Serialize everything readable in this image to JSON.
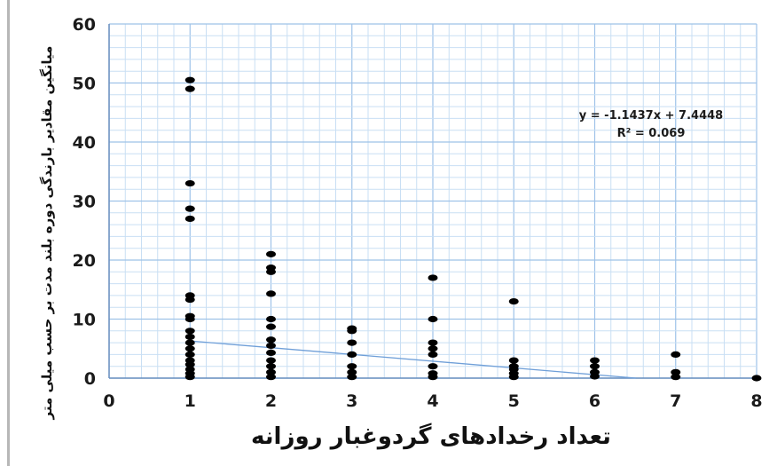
{
  "chart_data": {
    "type": "scatter",
    "xlabel": "تعداد رخدادهای گردوغبار روزانه",
    "ylabel": "میانگین مقادیر بارندگی دوره بلند مدت بر حسب میلی متر",
    "xlim": [
      0,
      8
    ],
    "ylim": [
      0,
      60
    ],
    "x_ticks": [
      "0",
      "1",
      "2",
      "3",
      "4",
      "5",
      "6",
      "7",
      "8"
    ],
    "y_ticks": [
      "0",
      "10",
      "20",
      "30",
      "40",
      "50",
      "60"
    ],
    "grid": true,
    "legend": "none",
    "series": [
      {
        "points": [
          {
            "x": 1,
            "y": 0.2
          },
          {
            "x": 1,
            "y": 0.8
          },
          {
            "x": 1,
            "y": 1.5
          },
          {
            "x": 1,
            "y": 2.3
          },
          {
            "x": 1,
            "y": 3.0
          },
          {
            "x": 1,
            "y": 4.0
          },
          {
            "x": 1,
            "y": 5.0
          },
          {
            "x": 1,
            "y": 6.0
          },
          {
            "x": 1,
            "y": 7.0
          },
          {
            "x": 1,
            "y": 8.0
          },
          {
            "x": 1,
            "y": 10.0
          },
          {
            "x": 1,
            "y": 10.5
          },
          {
            "x": 1,
            "y": 13.3
          },
          {
            "x": 1,
            "y": 14.0
          },
          {
            "x": 1,
            "y": 27.0
          },
          {
            "x": 1,
            "y": 28.7
          },
          {
            "x": 1,
            "y": 33.0
          },
          {
            "x": 1,
            "y": 49.0
          },
          {
            "x": 1,
            "y": 50.5
          },
          {
            "x": 2,
            "y": 0.2
          },
          {
            "x": 2,
            "y": 1.0
          },
          {
            "x": 2,
            "y": 2.0
          },
          {
            "x": 2,
            "y": 3.0
          },
          {
            "x": 2,
            "y": 4.3
          },
          {
            "x": 2,
            "y": 5.5
          },
          {
            "x": 2,
            "y": 6.5
          },
          {
            "x": 2,
            "y": 8.7
          },
          {
            "x": 2,
            "y": 10.0
          },
          {
            "x": 2,
            "y": 14.3
          },
          {
            "x": 2,
            "y": 18.0
          },
          {
            "x": 2,
            "y": 18.7
          },
          {
            "x": 2,
            "y": 21.0
          },
          {
            "x": 3,
            "y": 0.2
          },
          {
            "x": 3,
            "y": 1.0
          },
          {
            "x": 3,
            "y": 2.0
          },
          {
            "x": 3,
            "y": 4.0
          },
          {
            "x": 3,
            "y": 6.0
          },
          {
            "x": 3,
            "y": 8.0
          },
          {
            "x": 3,
            "y": 8.4
          },
          {
            "x": 4,
            "y": 0.2
          },
          {
            "x": 4,
            "y": 0.8
          },
          {
            "x": 4,
            "y": 2.0
          },
          {
            "x": 4,
            "y": 4.0
          },
          {
            "x": 4,
            "y": 5.0
          },
          {
            "x": 4,
            "y": 6.0
          },
          {
            "x": 4,
            "y": 10.0
          },
          {
            "x": 4,
            "y": 17.0
          },
          {
            "x": 5,
            "y": 0.2
          },
          {
            "x": 5,
            "y": 0.8
          },
          {
            "x": 5,
            "y": 1.5
          },
          {
            "x": 5,
            "y": 2.0
          },
          {
            "x": 5,
            "y": 3.0
          },
          {
            "x": 5,
            "y": 13.0
          },
          {
            "x": 6,
            "y": 0.3
          },
          {
            "x": 6,
            "y": 1.0
          },
          {
            "x": 6,
            "y": 2.0
          },
          {
            "x": 6,
            "y": 3.0
          },
          {
            "x": 7,
            "y": 0.2
          },
          {
            "x": 7,
            "y": 1.0
          },
          {
            "x": 7,
            "y": 4.0
          },
          {
            "x": 8,
            "y": 0.0
          }
        ],
        "color": "#000000"
      }
    ],
    "trendline": {
      "slope": -1.1437,
      "intercept": 7.4448,
      "x_range": [
        1,
        6.51
      ],
      "color": "#6f9fd8",
      "equation": "y = -1.1437x + 7.4448",
      "r_squared": "R² = 0.069"
    },
    "colors": {
      "grid_minor": "#c9dff4",
      "grid_major": "#9ec2e8",
      "axis": "#6a8fc0",
      "points": "#000000"
    }
  }
}
